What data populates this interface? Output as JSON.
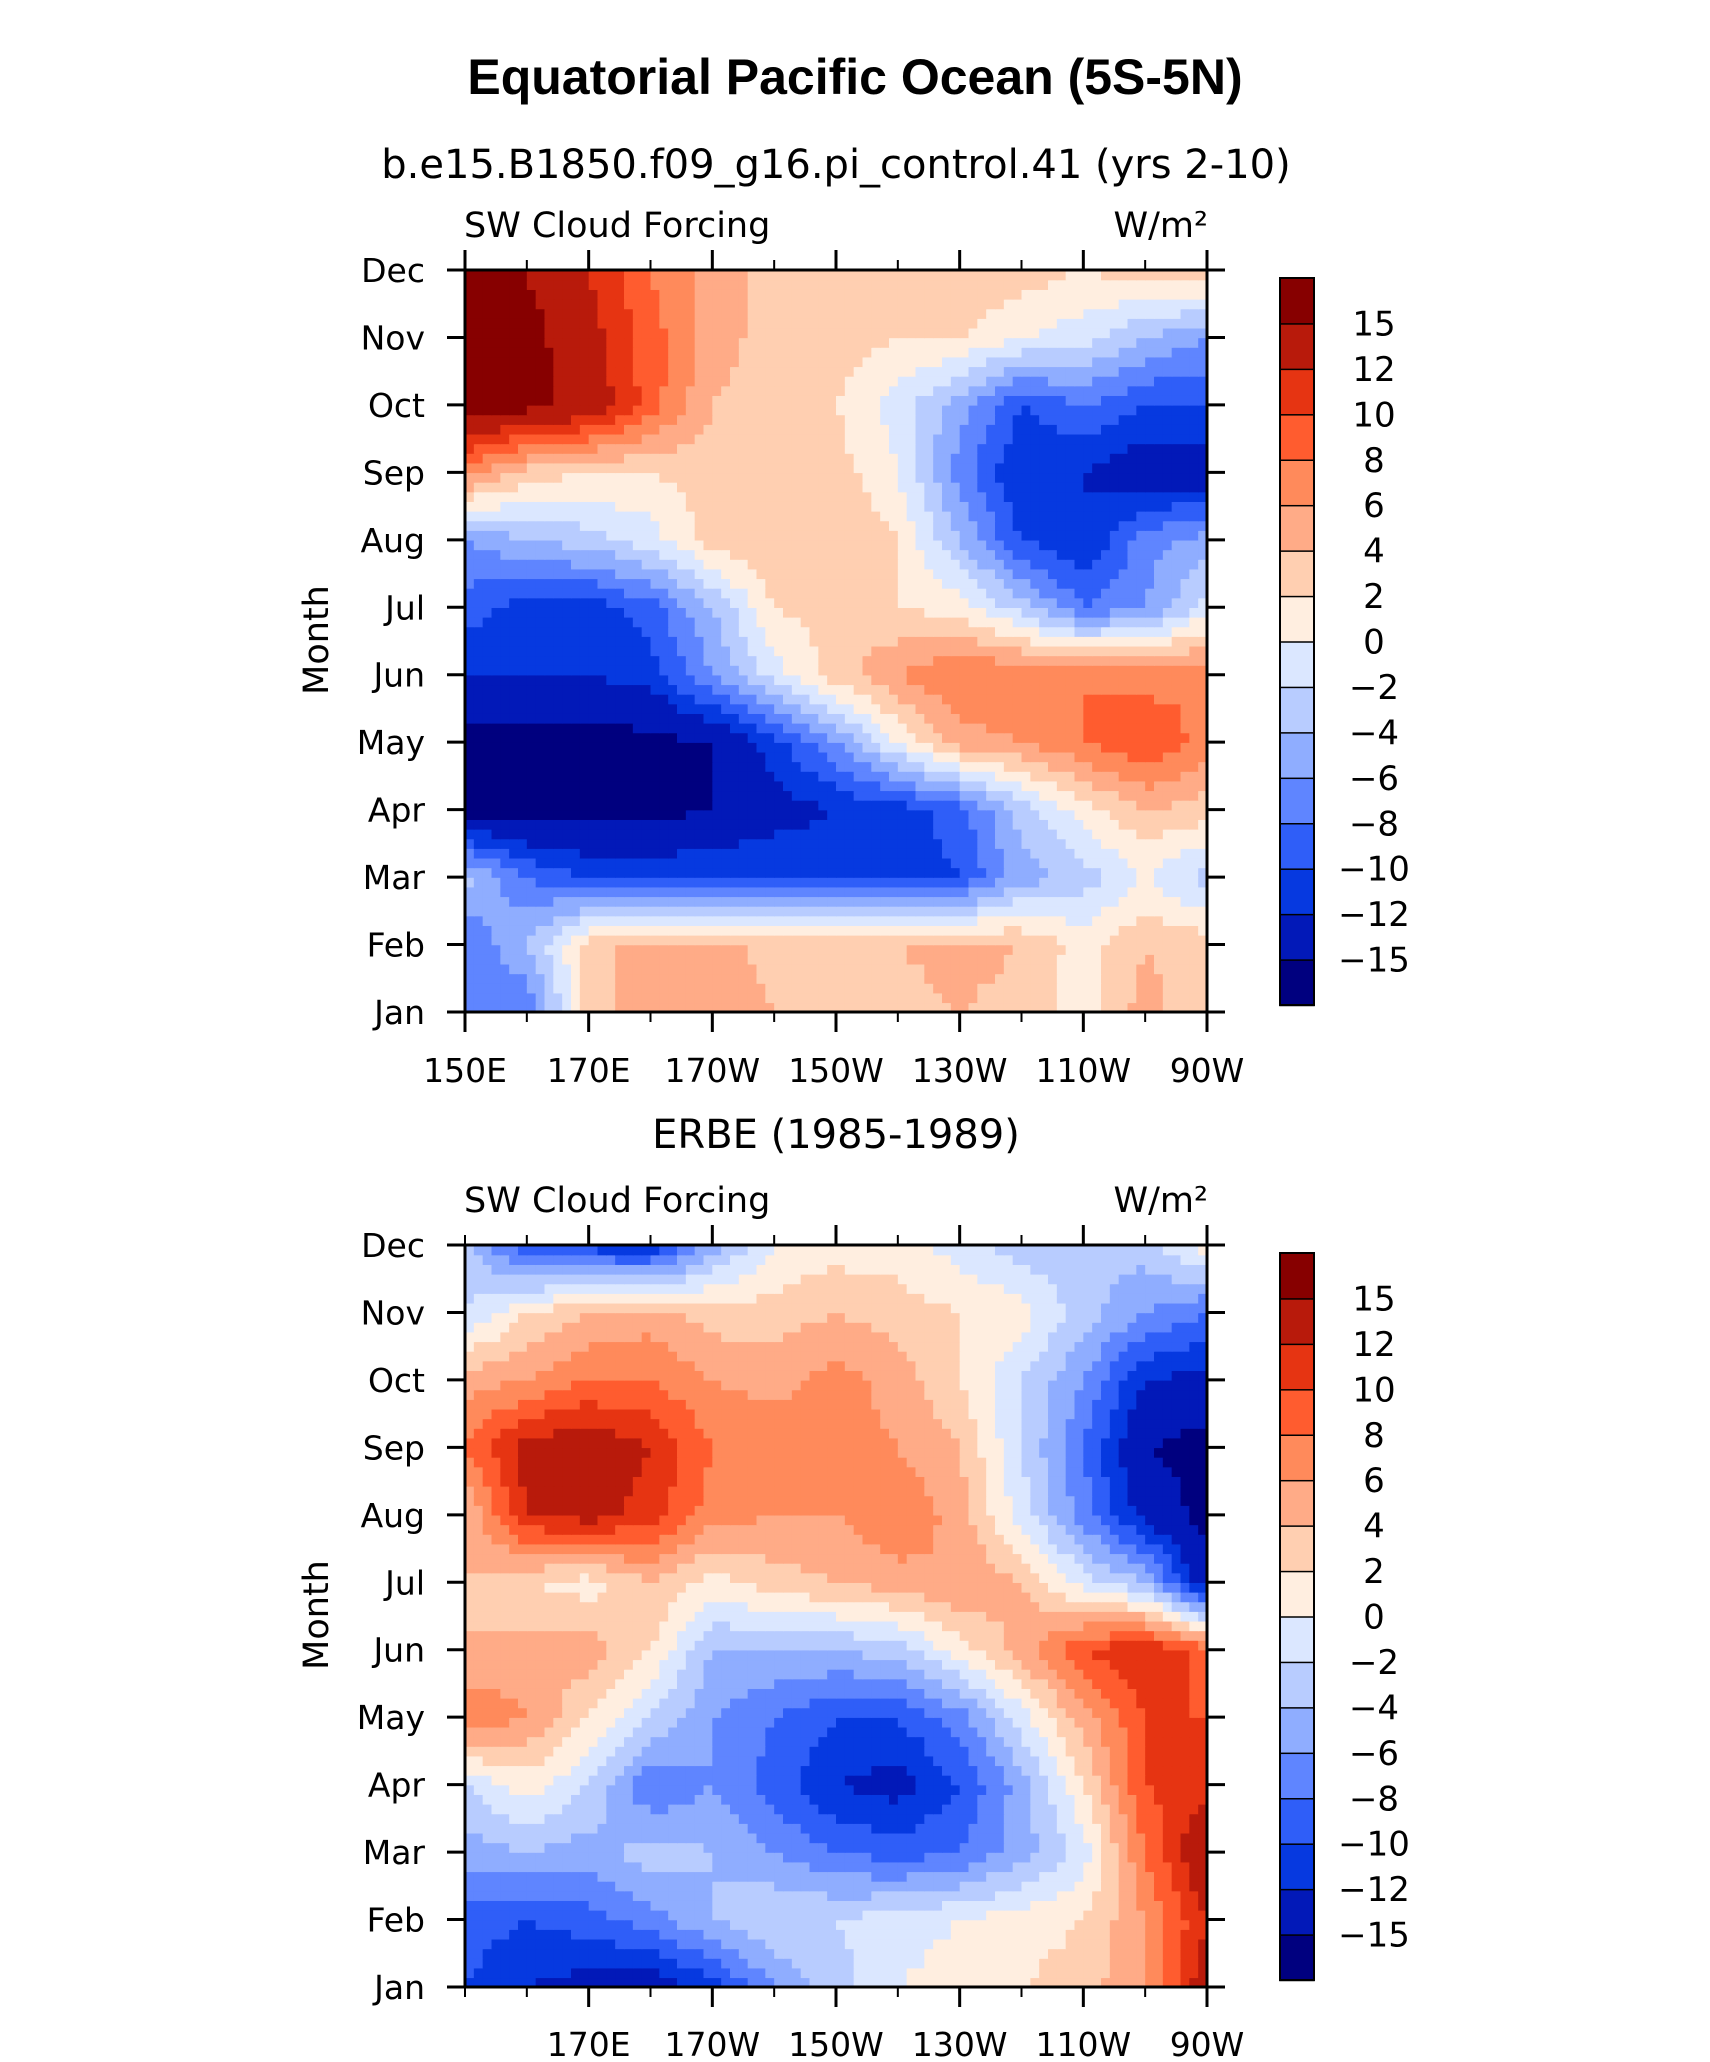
{
  "title": "Equatorial Pacific Ocean (5S-5N)",
  "palette": [
    "#00007f",
    "#0219b8",
    "#0639e0",
    "#2f5ef8",
    "#5f85ff",
    "#8fadff",
    "#b8ccff",
    "#dbe7ff",
    "#ffeee0",
    "#ffcfb1",
    "#ffab87",
    "#ff8a5b",
    "#ff5c2f",
    "#e63412",
    "#b81a0b",
    "#870000"
  ],
  "chart_data": [
    {
      "type": "heatmap",
      "subtitle": "b.e15.B1850.f09_g16.pi_control.41 (yrs 2-10)",
      "left_label": "SW Cloud Forcing",
      "right_label": "W/m²",
      "ylabel": "Month",
      "x_tick_labels": [
        "150E",
        "170E",
        "170W",
        "150W",
        "130W",
        "110W",
        "90W"
      ],
      "y_tick_labels": [
        "Jan",
        "Feb",
        "Mar",
        "Apr",
        "May",
        "Jun",
        "Jul",
        "Aug",
        "Sep",
        "Oct",
        "Nov",
        "Dec"
      ],
      "colorbar_labels": [
        "15",
        "12",
        "10",
        "8",
        "6",
        "4",
        "2",
        "0",
        "-2",
        "-4",
        "-6",
        "-8",
        "-10",
        "-12",
        "-15"
      ],
      "levels": [
        -15,
        -12,
        -10,
        -8,
        -6,
        -4,
        -2,
        0,
        2,
        4,
        6,
        8,
        10,
        12,
        15
      ],
      "x_range": [
        150,
        270
      ],
      "y_range": [
        0,
        11
      ],
      "x_grid": [
        150,
        160,
        170,
        180,
        190,
        200,
        210,
        220,
        230,
        240,
        250,
        260,
        270
      ],
      "values": [
        [
          -6,
          -8,
          3,
          5,
          6,
          4,
          3,
          3,
          4,
          3,
          1,
          5,
          2
        ],
        [
          -8,
          -4,
          3,
          5,
          5,
          3,
          3,
          4,
          5,
          4,
          1,
          4,
          3
        ],
        [
          -3,
          -8,
          -10,
          -10,
          -10,
          -10,
          -11,
          -11,
          -10,
          -5,
          -3,
          0,
          -3
        ],
        [
          -16,
          -16,
          -16,
          -16,
          -15,
          -13,
          -12,
          -11,
          -9,
          -3,
          1,
          4,
          3
        ],
        [
          -16,
          -16,
          -16,
          -16,
          -15,
          -11,
          -6,
          0,
          5,
          6,
          8,
          10,
          7
        ],
        [
          -12,
          -12,
          -12,
          -11,
          -6,
          -1,
          3,
          6,
          8,
          8,
          8,
          7,
          8
        ],
        [
          -9,
          -11,
          -11,
          -9,
          -4,
          2,
          3,
          2,
          1,
          -3,
          -8,
          -6,
          -1
        ],
        [
          -6,
          -4,
          -3,
          -1,
          3,
          4,
          4,
          2,
          -4,
          -10,
          -12,
          -7,
          -5
        ],
        [
          7,
          3,
          2,
          2,
          3,
          4,
          3,
          0,
          -7,
          -12,
          -12,
          -14,
          -14
        ],
        [
          16,
          16,
          14,
          9,
          4,
          3,
          2,
          -1,
          -5,
          -10,
          -8,
          -10,
          -10
        ],
        [
          16,
          16,
          13,
          9,
          5,
          3,
          3,
          2,
          2,
          0,
          -1,
          -4,
          -6
        ],
        [
          15,
          15,
          12,
          8,
          5,
          3,
          3,
          3,
          4,
          3,
          2,
          3,
          4
        ]
      ]
    },
    {
      "type": "heatmap",
      "subtitle": "ERBE (1985-1989)",
      "left_label": "SW Cloud Forcing",
      "right_label": "W/m²",
      "ylabel": "Month",
      "x_tick_labels": [
        "170E",
        "170W",
        "150W",
        "130W",
        "110W",
        "90W"
      ],
      "y_tick_labels": [
        "Jan",
        "Feb",
        "Mar",
        "Apr",
        "May",
        "Jun",
        "Jul",
        "Aug",
        "Sep",
        "Oct",
        "Nov",
        "Dec"
      ],
      "colorbar_labels": [
        "15",
        "12",
        "10",
        "8",
        "6",
        "4",
        "2",
        "0",
        "-2",
        "-4",
        "-6",
        "-8",
        "-10",
        "-12",
        "-15"
      ],
      "levels": [
        -15,
        -12,
        -10,
        -8,
        -6,
        -4,
        -2,
        0,
        2,
        4,
        6,
        8,
        10,
        12,
        15
      ],
      "x_range": [
        150,
        270
      ],
      "y_range": [
        0,
        11
      ],
      "x_grid": [
        150,
        160,
        170,
        180,
        190,
        200,
        210,
        220,
        230,
        240,
        250,
        260,
        270
      ],
      "values": [
        [
          -10,
          -12,
          -13,
          -14,
          -11,
          -6,
          -3,
          0,
          1,
          2,
          3,
          6,
          14
        ],
        [
          -9,
          -10,
          -9,
          -7,
          -4,
          -2,
          -2,
          -1,
          0,
          1,
          2,
          6,
          12
        ],
        [
          -5,
          -4,
          -5,
          -3,
          -4,
          -6,
          -8,
          -9,
          -8,
          -5,
          -1,
          8,
          15
        ],
        [
          -2,
          1,
          -2,
          -8,
          -6,
          -9,
          -12,
          -13,
          -10,
          -5,
          2,
          10,
          11
        ],
        [
          8,
          6,
          2,
          -2,
          -6,
          -8,
          -10,
          -10,
          -7,
          -1,
          5,
          10,
          10
        ],
        [
          4,
          5,
          5,
          2,
          -4,
          -4,
          -4,
          -3,
          1,
          5,
          10,
          12,
          9
        ],
        [
          4,
          2,
          1,
          4,
          1,
          3,
          4,
          5,
          6,
          4,
          -1,
          -4,
          -14
        ],
        [
          4,
          12,
          13,
          11,
          7,
          6,
          6,
          8,
          5,
          -1,
          -7,
          -13,
          -16
        ],
        [
          8,
          13,
          14,
          12,
          8,
          8,
          7,
          6,
          4,
          -2,
          -8,
          -15,
          -16
        ],
        [
          5,
          6,
          8,
          8,
          6,
          5,
          7,
          5,
          2,
          -2,
          -6,
          -12,
          -13
        ],
        [
          -2,
          2,
          4,
          5,
          3,
          3,
          4,
          3,
          2,
          1,
          -3,
          -6,
          -8
        ],
        [
          -3,
          -10,
          -11,
          -12,
          -5,
          0,
          1,
          1,
          -1,
          -3,
          -4,
          -3,
          1
        ]
      ]
    }
  ]
}
